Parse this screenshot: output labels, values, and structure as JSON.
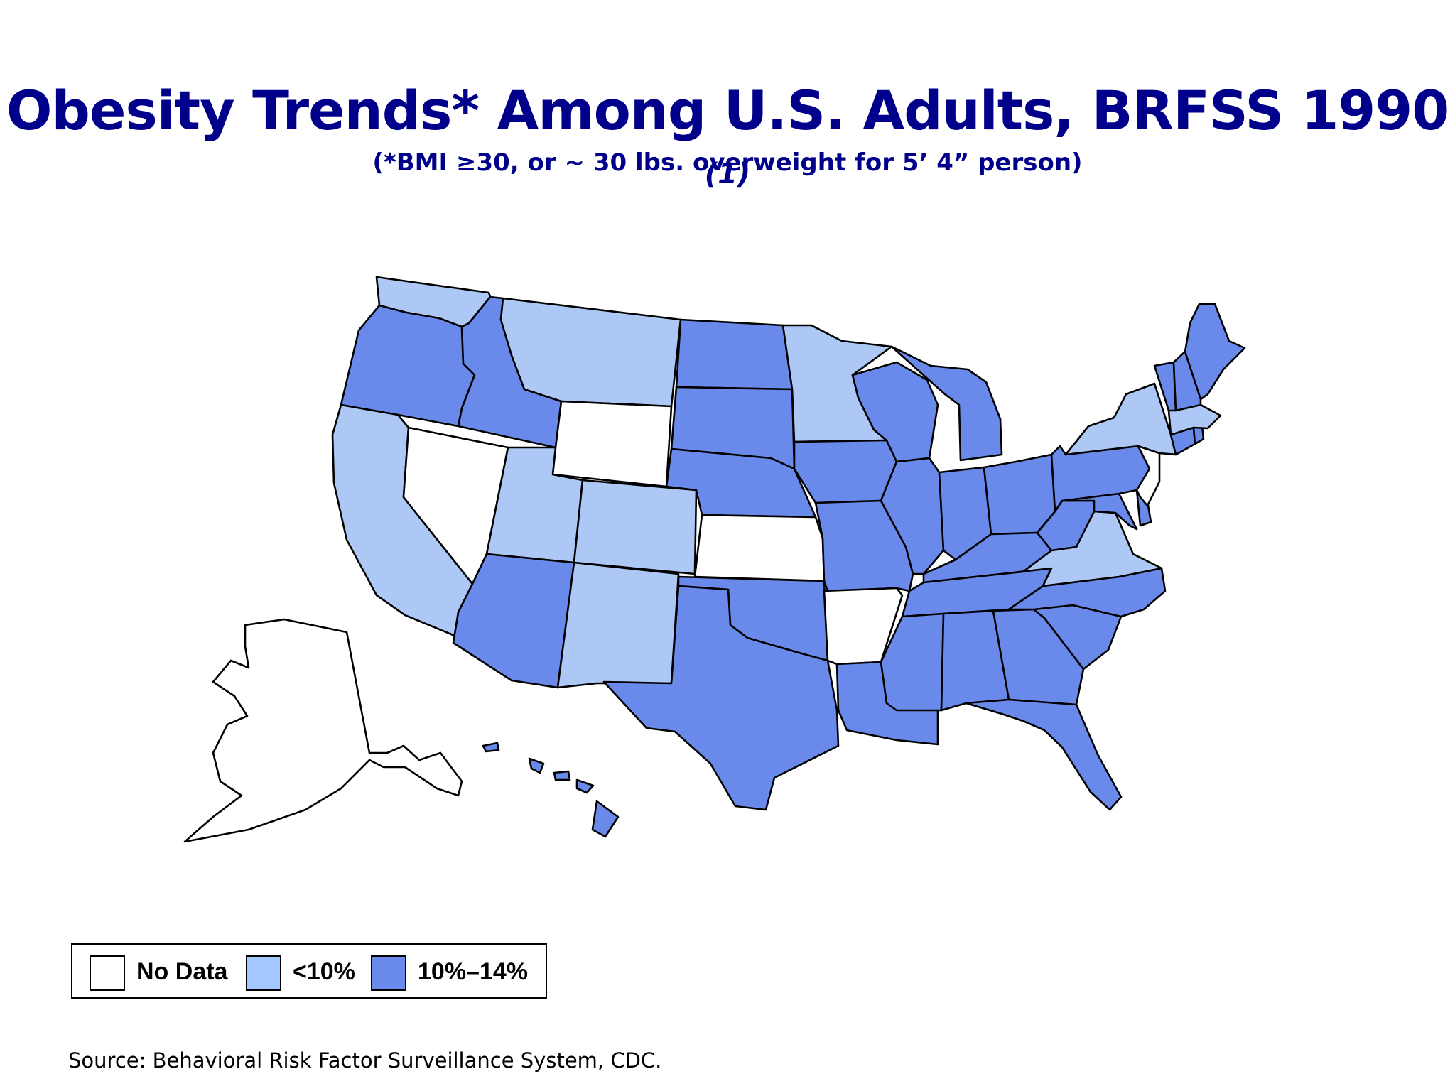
{
  "title": {
    "main": "Obesity Trends* Among U.S. Adults, BRFSS 1990",
    "note": "(1)",
    "subtitle": "(*BMI ≥30, or ~ 30 lbs. overweight for 5’ 4” person)"
  },
  "legend": {
    "items": [
      {
        "label": "No Data",
        "color": "#ffffff"
      },
      {
        "label": "<10%",
        "color": "#a3c8ff"
      },
      {
        "label": "10%–14%",
        "color": "#6a8aeb"
      }
    ]
  },
  "map_colors": {
    "no_data": "#ffffff",
    "under_10": "#adc8f5",
    "pct_10_14": "#6a8aeb"
  },
  "states": [
    {
      "name": "Washington",
      "category": "under_10"
    },
    {
      "name": "Oregon",
      "category": "pct_10_14"
    },
    {
      "name": "California",
      "category": "under_10"
    },
    {
      "name": "Nevada",
      "category": "no_data"
    },
    {
      "name": "Idaho",
      "category": "pct_10_14"
    },
    {
      "name": "Montana",
      "category": "under_10"
    },
    {
      "name": "Wyoming",
      "category": "no_data"
    },
    {
      "name": "Utah",
      "category": "under_10"
    },
    {
      "name": "Colorado",
      "category": "under_10"
    },
    {
      "name": "Arizona",
      "category": "pct_10_14"
    },
    {
      "name": "New Mexico",
      "category": "under_10"
    },
    {
      "name": "North Dakota",
      "category": "pct_10_14"
    },
    {
      "name": "South Dakota",
      "category": "pct_10_14"
    },
    {
      "name": "Nebraska",
      "category": "pct_10_14"
    },
    {
      "name": "Kansas",
      "category": "no_data"
    },
    {
      "name": "Oklahoma",
      "category": "pct_10_14"
    },
    {
      "name": "Texas",
      "category": "pct_10_14"
    },
    {
      "name": "Minnesota",
      "category": "under_10"
    },
    {
      "name": "Iowa",
      "category": "pct_10_14"
    },
    {
      "name": "Missouri",
      "category": "pct_10_14"
    },
    {
      "name": "Arkansas",
      "category": "no_data"
    },
    {
      "name": "Louisiana",
      "category": "pct_10_14"
    },
    {
      "name": "Wisconsin",
      "category": "pct_10_14"
    },
    {
      "name": "Illinois",
      "category": "pct_10_14"
    },
    {
      "name": "Michigan",
      "category": "pct_10_14"
    },
    {
      "name": "Indiana",
      "category": "pct_10_14"
    },
    {
      "name": "Ohio",
      "category": "pct_10_14"
    },
    {
      "name": "Kentucky",
      "category": "pct_10_14"
    },
    {
      "name": "Tennessee",
      "category": "pct_10_14"
    },
    {
      "name": "Mississippi",
      "category": "pct_10_14"
    },
    {
      "name": "Alabama",
      "category": "pct_10_14"
    },
    {
      "name": "Georgia",
      "category": "pct_10_14"
    },
    {
      "name": "Florida",
      "category": "pct_10_14"
    },
    {
      "name": "South Carolina",
      "category": "pct_10_14"
    },
    {
      "name": "North Carolina",
      "category": "pct_10_14"
    },
    {
      "name": "Virginia",
      "category": "under_10"
    },
    {
      "name": "West Virginia",
      "category": "pct_10_14"
    },
    {
      "name": "Maryland",
      "category": "pct_10_14"
    },
    {
      "name": "Delaware",
      "category": "pct_10_14"
    },
    {
      "name": "Pennsylvania",
      "category": "pct_10_14"
    },
    {
      "name": "New Jersey",
      "category": "no_data"
    },
    {
      "name": "New York",
      "category": "under_10"
    },
    {
      "name": "Connecticut",
      "category": "pct_10_14"
    },
    {
      "name": "Rhode Island",
      "category": "pct_10_14"
    },
    {
      "name": "Massachusetts",
      "category": "under_10"
    },
    {
      "name": "Vermont",
      "category": "pct_10_14"
    },
    {
      "name": "New Hampshire",
      "category": "pct_10_14"
    },
    {
      "name": "Maine",
      "category": "pct_10_14"
    },
    {
      "name": "Alaska",
      "category": "no_data"
    },
    {
      "name": "Hawaii",
      "category": "pct_10_14"
    }
  ],
  "source": "Source: Behavioral Risk Factor Surveillance System, CDC."
}
